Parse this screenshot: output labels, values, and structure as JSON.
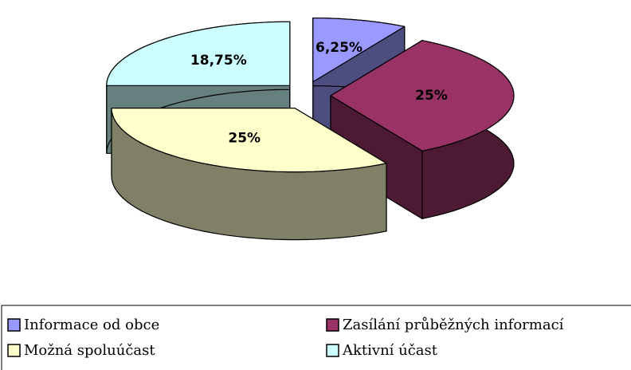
{
  "chart_data": {
    "type": "pie",
    "categories": [
      "Informace od obce",
      "Zasílání průběžných informací",
      "Možná spoluúčast",
      "Aktivní účast"
    ],
    "values": [
      6.25,
      25,
      25,
      18.75
    ],
    "value_labels": [
      "6,25%",
      "25%",
      "25%",
      "18,75%"
    ],
    "colors": [
      "#9999ff",
      "#993366",
      "#ffffcc",
      "#ccffff"
    ],
    "legend": "bottom"
  }
}
